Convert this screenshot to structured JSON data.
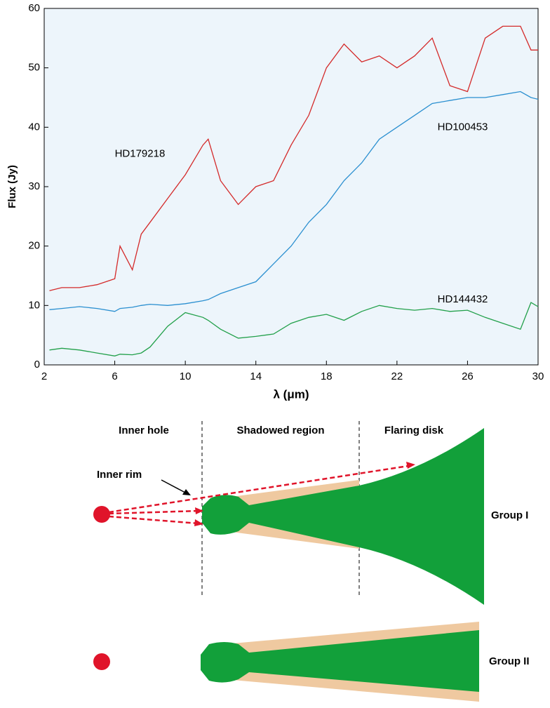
{
  "chart_data": {
    "type": "line",
    "xlabel": "λ (μm)",
    "ylabel": "Flux (Jy)",
    "x": [
      2.3,
      3,
      4,
      5,
      6,
      6.3,
      7,
      7.5,
      8,
      9,
      10,
      11,
      11.3,
      12,
      13,
      14,
      15,
      16,
      17,
      18,
      19,
      20,
      21,
      22,
      23,
      24,
      25,
      26,
      27,
      28,
      29,
      29.6,
      30
    ],
    "series": [
      {
        "name": "HD179218",
        "color": "#d42a2a",
        "values": [
          12.5,
          13,
          13,
          13.5,
          14.5,
          20,
          16,
          22,
          24,
          28,
          32,
          37,
          38,
          31,
          27,
          30,
          31,
          37,
          42,
          50,
          54,
          51,
          52,
          50,
          52,
          55,
          47,
          46,
          55,
          57,
          57,
          53,
          53
        ]
      },
      {
        "name": "HD100453",
        "color": "#2a8fd0",
        "values": [
          9.3,
          9.5,
          9.8,
          9.5,
          9,
          9.5,
          9.7,
          10,
          10.2,
          10,
          10.3,
          10.8,
          11,
          12,
          13,
          14,
          17,
          20,
          24,
          27,
          31,
          34,
          38,
          40,
          42,
          44,
          44.5,
          45,
          45,
          45.5,
          46,
          45,
          44.7
        ]
      },
      {
        "name": "HD144432",
        "color": "#22a04a",
        "values": [
          2.5,
          2.8,
          2.5,
          2,
          1.5,
          1.8,
          1.7,
          2,
          3,
          6.5,
          8.8,
          8,
          7.5,
          6,
          4.5,
          4.8,
          5.2,
          7,
          8,
          8.5,
          7.5,
          9,
          10,
          9.5,
          9.2,
          9.5,
          9,
          9.2,
          8,
          7,
          6,
          10.5,
          9.8
        ]
      }
    ],
    "xlim": [
      2,
      30
    ],
    "xticks": [
      2,
      6,
      10,
      14,
      18,
      22,
      26,
      30
    ],
    "ylim": [
      0,
      60
    ],
    "yticks": [
      0,
      10,
      20,
      30,
      40,
      50,
      60
    ],
    "background": "#edf5fb"
  },
  "diagram": {
    "regions": [
      "Inner hole",
      "Shadowed region",
      "Flaring disk"
    ],
    "inner_rim": "Inner rim",
    "groups": [
      "Group I",
      "Group II"
    ]
  }
}
